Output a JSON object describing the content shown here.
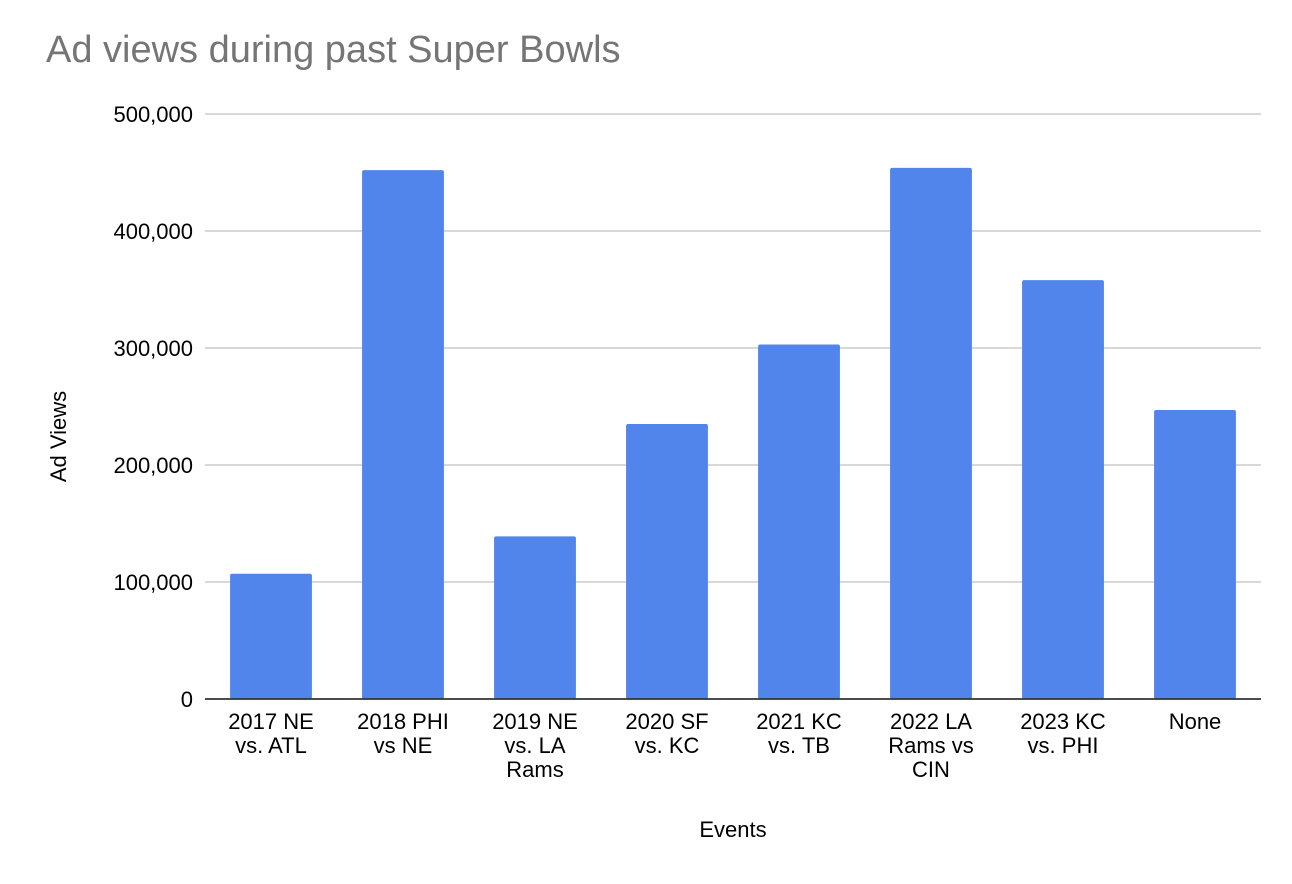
{
  "chart_data": {
    "type": "bar",
    "title": "Ad views during past Super Bowls",
    "xlabel": "Events",
    "ylabel": "Ad Views",
    "ylim": [
      0,
      500000
    ],
    "y_ticks": [
      0,
      100000,
      200000,
      300000,
      400000,
      500000
    ],
    "y_tick_labels": [
      "0",
      "100,000",
      "200,000",
      "300,000",
      "400,000",
      "500,000"
    ],
    "grid": true,
    "legend": "none",
    "bar_color": "#5185EB",
    "categories": [
      [
        "2017 NE",
        "vs. ATL"
      ],
      [
        "2018 PHI",
        "vs NE"
      ],
      [
        "2019 NE",
        "vs. LA",
        "Rams"
      ],
      [
        "2020 SF",
        "vs. KC"
      ],
      [
        "2021 KC",
        "vs. TB"
      ],
      [
        "2022 LA",
        "Rams vs",
        "CIN"
      ],
      [
        "2023 KC",
        "vs. PHI"
      ],
      [
        "None"
      ]
    ],
    "values": [
      107000,
      452000,
      139000,
      235000,
      303000,
      454000,
      358000,
      247000
    ]
  }
}
